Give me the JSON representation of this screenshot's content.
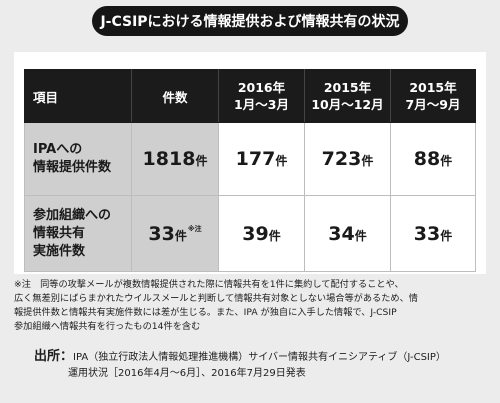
{
  "title": "J-CSIPにおける情報提供および情報共有の状況",
  "table": {
    "headers": {
      "item": "項目",
      "count": "件数",
      "q2016_l1": "2016年",
      "q2016_l2": "1月〜3月",
      "q2015b_l1": "2015年",
      "q2015b_l2": "10月〜12月",
      "q2015a_l1": "2015年",
      "q2015a_l2": "7月〜9月"
    },
    "rows": [
      {
        "label_lines": [
          "IPAへの",
          "情報提供件数"
        ],
        "cells": [
          {
            "value": "1818",
            "unit": "件",
            "mark": ""
          },
          {
            "value": "177",
            "unit": "件",
            "mark": ""
          },
          {
            "value": "723",
            "unit": "件",
            "mark": ""
          },
          {
            "value": "88",
            "unit": "件",
            "mark": ""
          }
        ]
      },
      {
        "label_lines": [
          "参加組織への",
          "情報共有",
          "実施件数"
        ],
        "cells": [
          {
            "value": "33",
            "unit": "件",
            "mark": "※注"
          },
          {
            "value": "39",
            "unit": "件",
            "mark": ""
          },
          {
            "value": "34",
            "unit": "件",
            "mark": ""
          },
          {
            "value": "33",
            "unit": "件",
            "mark": ""
          }
        ]
      }
    ]
  },
  "note": {
    "lines": [
      "※注　同等の攻撃メールが複数情報提供された際に情報共有を1件に集約して配付することや、",
      "広く無差別にばらまかれたウイルスメールと判断して情報共有対象としない場合等があるため、情",
      "報提供件数と情報共有実施件数には差が生じる。また、IPA が独自に入手した情報で、J-CSIP",
      "参加組織へ情報共有を行ったもの14件を含む"
    ]
  },
  "source": {
    "lead": "出所：",
    "line1": "IPA（独立行政法人情報処理推進機構）サイバー情報共有イニシアティブ（J-CSIP）",
    "line2": "運用状況［2016年4月〜6月］、2016年7月29日発表"
  }
}
